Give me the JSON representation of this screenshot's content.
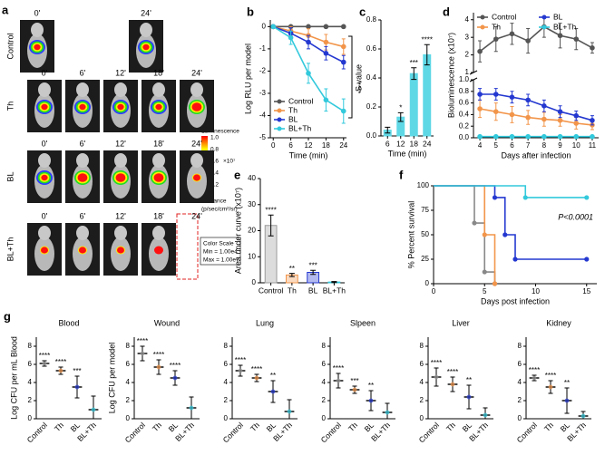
{
  "panel_a": {
    "label": "a",
    "rows": [
      {
        "name": "Control",
        "times": [
          "0'",
          "24'"
        ]
      },
      {
        "name": "Th",
        "times": [
          "0'",
          "6'",
          "12'",
          "18'",
          "24'"
        ]
      },
      {
        "name": "BL",
        "times": [
          "0'",
          "6'",
          "12'",
          "18'",
          "24'"
        ]
      },
      {
        "name": "BL+Th",
        "times": [
          "0'",
          "6'",
          "12'",
          "18'",
          "24'"
        ]
      }
    ],
    "colorbar": {
      "title": "Luminescence",
      "ticks": [
        "1.0",
        "0.8",
        "0.6",
        "0.4",
        "0.2"
      ],
      "unit": "×10⁷",
      "radiance": "Radiance",
      "radiance_unit": "(p/sec/cm²/sr)",
      "scale_title": "Color Scale",
      "min": "Min = 1.00e4",
      "max": "Max = 1.00e7"
    }
  },
  "chart_data": [
    {
      "type": "line",
      "panel": "b",
      "ylabel": "Log RLU per model",
      "xlabel": "Time (min)",
      "x": [
        0,
        6,
        12,
        18,
        24
      ],
      "xlim": [
        -1,
        25
      ],
      "xticks": [
        0,
        6,
        12,
        18,
        24
      ],
      "ylim": [
        -5,
        0.3
      ],
      "yticks": [
        0,
        -1,
        -2,
        -3,
        -4,
        -5
      ],
      "annotations": [
        "****"
      ],
      "legend": "lower left",
      "series": [
        {
          "name": "Control",
          "color": "#555555",
          "values": [
            0,
            0,
            0,
            0,
            0
          ],
          "errors": [
            0.05,
            0.05,
            0.05,
            0.05,
            0.05
          ]
        },
        {
          "name": "Th",
          "color": "#f2954a",
          "values": [
            0,
            -0.2,
            -0.4,
            -0.7,
            -0.9
          ],
          "errors": [
            0.05,
            0.2,
            0.3,
            0.35,
            0.35
          ]
        },
        {
          "name": "BL",
          "color": "#2438d0",
          "values": [
            0,
            -0.3,
            -0.7,
            -1.2,
            -1.6
          ],
          "errors": [
            0.05,
            0.25,
            0.3,
            0.3,
            0.3
          ]
        },
        {
          "name": "BL+Th",
          "color": "#33c9dc",
          "values": [
            0,
            -0.5,
            -2.1,
            -3.3,
            -3.8
          ],
          "errors": [
            0.05,
            0.3,
            0.45,
            0.5,
            0.55
          ]
        }
      ]
    },
    {
      "type": "bar",
      "panel": "c",
      "ylabel": "S value",
      "xlabel": "Time (min)",
      "categories": [
        "6",
        "12",
        "18",
        "24"
      ],
      "values": [
        0.04,
        0.13,
        0.43,
        0.56
      ],
      "errors": [
        0.02,
        0.03,
        0.04,
        0.07
      ],
      "significance": [
        null,
        "*",
        "***",
        "****"
      ],
      "color": "#5fd8e6",
      "ylim": [
        0,
        0.8
      ],
      "yticks": [
        {
          "value": 0,
          "label": "0.0"
        },
        0.2,
        0.4,
        0.6,
        0.8
      ]
    },
    {
      "type": "line",
      "panel": "d",
      "ylabel": "Bioluminescence (x10⁷)",
      "xlabel": "Days after infection",
      "x": [
        4,
        5,
        6,
        7,
        8,
        9,
        10,
        11
      ],
      "xlim": [
        3.6,
        11.4
      ],
      "xticks": [
        4,
        5,
        6,
        7,
        8,
        9,
        10,
        11
      ],
      "ylim": [
        0,
        1
      ],
      "yticks": [
        {
          "value": 0,
          "label": "0.0"
        },
        0.2,
        0.4,
        0.6,
        0.8,
        {
          "value": 1,
          "label": "1.0"
        }
      ],
      "y2lim": [
        1,
        4.4
      ],
      "y2ticks": [
        1,
        2,
        3,
        4
      ],
      "legend": "top",
      "series": [
        {
          "name": "Control",
          "color": "#555555",
          "axis": "y2",
          "values": [
            2.2,
            2.9,
            3.2,
            2.8,
            3.6,
            3.1,
            2.9,
            2.4
          ],
          "errors": [
            0.6,
            0.7,
            0.6,
            0.7,
            0.6,
            0.7,
            0.6,
            0.3
          ]
        },
        {
          "name": "Th",
          "color": "#f2954a",
          "values": [
            0.5,
            0.45,
            0.4,
            0.35,
            0.32,
            0.3,
            0.25,
            0.22
          ],
          "errors": [
            0.15,
            0.15,
            0.14,
            0.12,
            0.12,
            0.1,
            0.1,
            0.08
          ]
        },
        {
          "name": "BL",
          "color": "#2438d0",
          "values": [
            0.75,
            0.75,
            0.7,
            0.65,
            0.55,
            0.45,
            0.38,
            0.3
          ],
          "errors": [
            0.1,
            0.1,
            0.1,
            0.1,
            0.1,
            0.1,
            0.08,
            0.08
          ]
        },
        {
          "name": "BL+Th",
          "color": "#33c9dc",
          "values": [
            0.02,
            0.02,
            0.02,
            0.02,
            0.02,
            0.02,
            0.02,
            0.02
          ],
          "errors": [
            0.01,
            0.01,
            0.01,
            0.01,
            0.01,
            0.01,
            0.01,
            0.01
          ]
        }
      ]
    },
    {
      "type": "bar",
      "panel": "e",
      "ylabel": "Area under curve (x10⁷)",
      "categories": [
        "Control",
        "Th",
        "BL",
        "BL+Th"
      ],
      "values": [
        22,
        3,
        4,
        0.3
      ],
      "errors": [
        4,
        0.6,
        0.8,
        0.2
      ],
      "significance": [
        "****",
        "**",
        "***",
        null
      ],
      "colors": [
        "#9a9a9a",
        "#f2954a",
        "#2438d0",
        "#33c9dc"
      ],
      "ylim": [
        0,
        40
      ],
      "yticks": [
        0,
        10,
        20,
        30,
        40
      ]
    },
    {
      "type": "step",
      "panel": "f",
      "ylabel": "% Percent survival",
      "xlabel": "Days post infection",
      "xlim": [
        0,
        16
      ],
      "xticks": [
        0,
        5,
        10,
        15
      ],
      "ylim": [
        0,
        100
      ],
      "yticks": [
        0,
        25,
        50,
        75,
        100
      ],
      "annotations": [
        "P<0.0001"
      ],
      "series": [
        {
          "name": "Control",
          "color": "#888888",
          "x": [
            0,
            4,
            5,
            6
          ],
          "values": [
            100,
            62,
            12,
            0
          ]
        },
        {
          "name": "Th",
          "color": "#f2954a",
          "x": [
            0,
            5,
            6
          ],
          "values": [
            100,
            50,
            0
          ]
        },
        {
          "name": "BL",
          "color": "#2438d0",
          "x": [
            0,
            6,
            7,
            8,
            15
          ],
          "values": [
            100,
            88,
            50,
            25,
            25
          ]
        },
        {
          "name": "BL+Th",
          "color": "#33c9dc",
          "x": [
            0,
            9,
            15
          ],
          "values": [
            100,
            88,
            88
          ]
        }
      ]
    },
    {
      "type": "dot",
      "panel": "g",
      "title": "Blood",
      "ylabel": "Log CFU per mL Blood",
      "categories": [
        "Control",
        "Th",
        "BL",
        "BL+Th"
      ],
      "values": [
        6.1,
        5.3,
        3.5,
        1.0
      ],
      "errors": [
        0.3,
        0.4,
        1.2,
        1.5
      ],
      "significance": [
        "****",
        "****",
        "***",
        null
      ],
      "colors": [
        "#9a9a9a",
        "#f2954a",
        "#2438d0",
        "#33c9dc"
      ],
      "ylim": [
        0,
        9
      ],
      "yticks": [
        0,
        2,
        4,
        6,
        8
      ]
    },
    {
      "type": "dot",
      "title": "Wound",
      "ylabel": "Log CFU per model",
      "categories": [
        "Control",
        "Th",
        "BL",
        "BL+Th"
      ],
      "values": [
        7.2,
        5.7,
        4.5,
        1.2
      ],
      "errors": [
        0.8,
        0.8,
        0.8,
        1.2
      ],
      "significance": [
        "****",
        "****",
        "****",
        null
      ],
      "colors": [
        "#9a9a9a",
        "#f2954a",
        "#2438d0",
        "#33c9dc"
      ],
      "ylim": [
        0,
        9
      ],
      "yticks": [
        0,
        2,
        4,
        6,
        8
      ]
    },
    {
      "type": "dot",
      "title": "Lung",
      "categories": [
        "Control",
        "Th",
        "BL",
        "BL+Th"
      ],
      "values": [
        5.3,
        4.5,
        3.0,
        0.8
      ],
      "errors": [
        0.6,
        0.4,
        1.2,
        1.3
      ],
      "significance": [
        "****",
        "****",
        "**",
        null
      ],
      "colors": [
        "#9a9a9a",
        "#f2954a",
        "#2438d0",
        "#33c9dc"
      ],
      "ylim": [
        0,
        9
      ],
      "yticks": [
        0,
        2,
        4,
        6,
        8
      ]
    },
    {
      "type": "dot",
      "title": "Slpeen",
      "categories": [
        "Control",
        "Th",
        "BL",
        "BL+Th"
      ],
      "values": [
        4.2,
        3.2,
        2.0,
        0.7
      ],
      "errors": [
        0.8,
        0.4,
        1.1,
        1.0
      ],
      "significance": [
        "****",
        "***",
        "**",
        null
      ],
      "colors": [
        "#9a9a9a",
        "#f2954a",
        "#2438d0",
        "#33c9dc"
      ],
      "ylim": [
        0,
        9
      ],
      "yticks": [
        0,
        2,
        4,
        6,
        8
      ]
    },
    {
      "type": "dot",
      "title": "Liver",
      "categories": [
        "Control",
        "Th",
        "BL",
        "BL+Th"
      ],
      "values": [
        4.6,
        3.8,
        2.4,
        0.4
      ],
      "errors": [
        1.0,
        0.8,
        1.3,
        0.8
      ],
      "significance": [
        "****",
        "****",
        "**",
        null
      ],
      "colors": [
        "#9a9a9a",
        "#f2954a",
        "#2438d0",
        "#33c9dc"
      ],
      "ylim": [
        0,
        9
      ],
      "yticks": [
        0,
        2,
        4,
        6,
        8
      ]
    },
    {
      "type": "dot",
      "title": "Kidney",
      "categories": [
        "Control",
        "Th",
        "BL",
        "BL+Th"
      ],
      "values": [
        4.5,
        3.5,
        2.0,
        0.3
      ],
      "errors": [
        0.3,
        0.7,
        1.4,
        0.5
      ],
      "significance": [
        "****",
        "****",
        "**",
        null
      ],
      "colors": [
        "#9a9a9a",
        "#f2954a",
        "#2438d0",
        "#33c9dc"
      ],
      "ylim": [
        0,
        9
      ],
      "yticks": [
        0,
        2,
        4,
        6,
        8
      ]
    }
  ]
}
